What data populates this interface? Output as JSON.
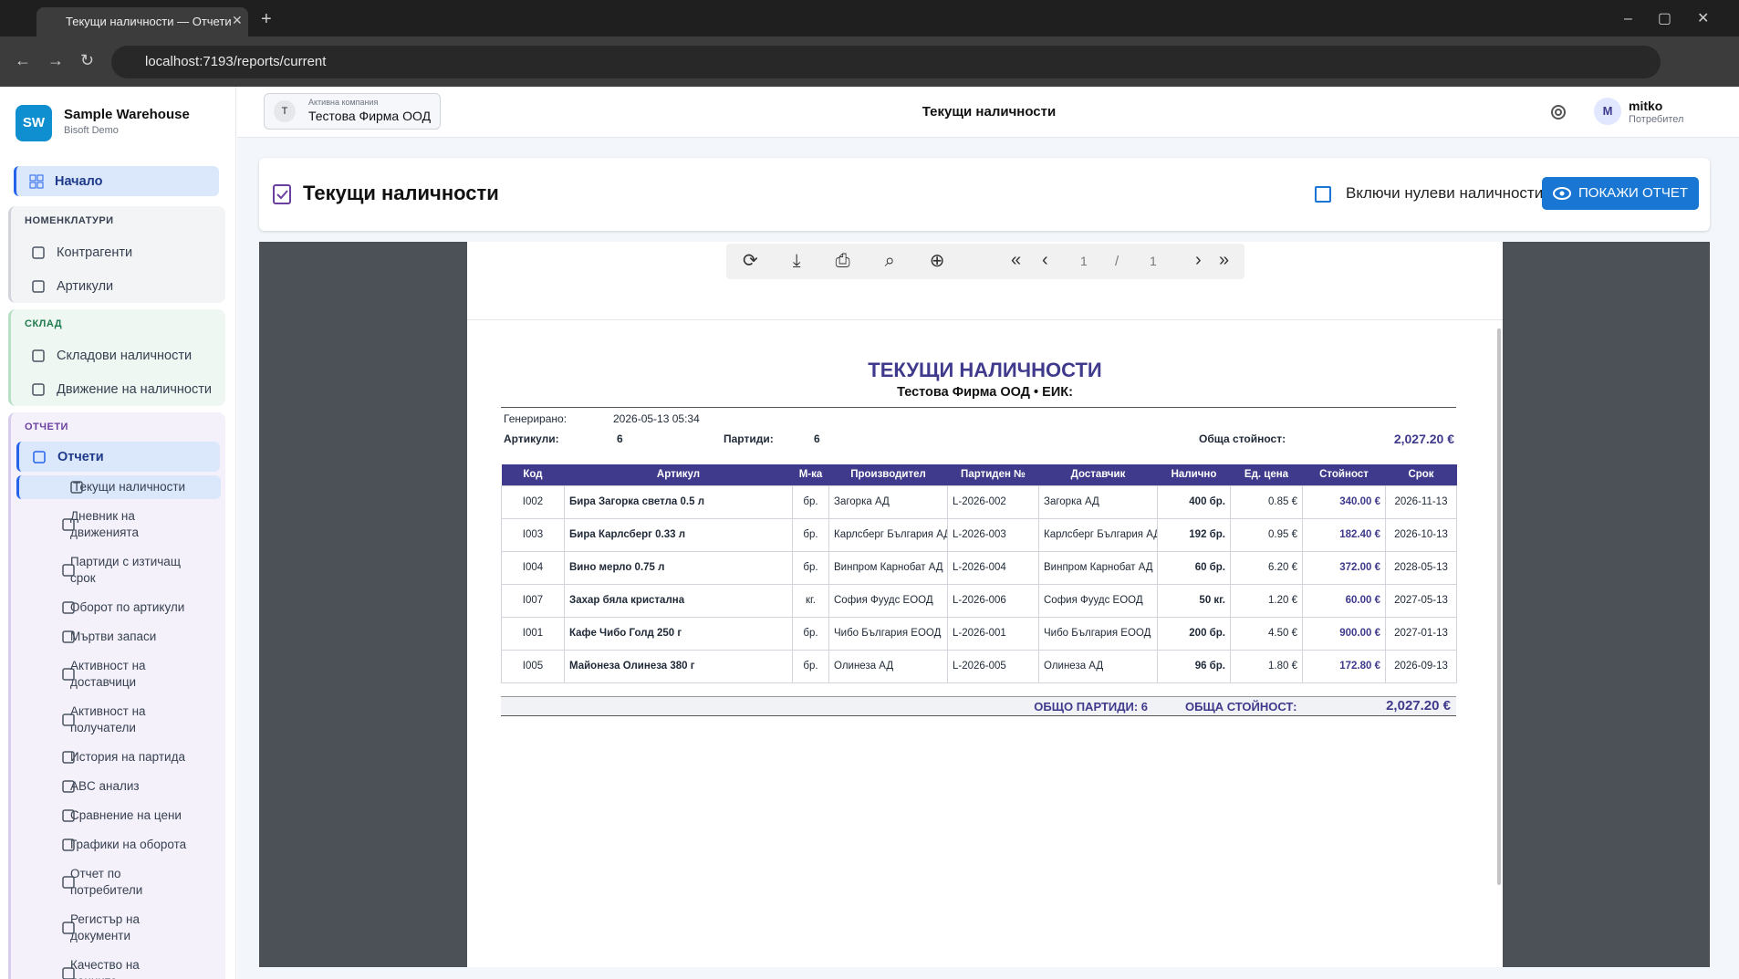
{
  "browser": {
    "tab_title": "Текущи наличности — Отчети",
    "url": "localhost:7193/reports/current"
  },
  "sidebar": {
    "logo": "SW",
    "brand": "Sample Warehouse",
    "brand_subtitle": "Bisoft Demo",
    "home": "Начало",
    "sections": [
      {
        "title": "НОМЕНКЛАТУРИ",
        "items": [
          "Контрагенти",
          "Артикули"
        ]
      },
      {
        "title": "СКЛАД",
        "items": [
          "Складови наличности",
          "Движение на наличности"
        ]
      }
    ],
    "reports": {
      "title": "ОТЧЕТИ",
      "group": "Отчети",
      "items": [
        "Текущи наличности",
        "Дневник на движенията",
        "Партиди с изтичащ срок",
        "Оборот по артикули",
        "Мъртви запаси",
        "Активност на доставчици",
        "Активност на получатели",
        "История на партида",
        "ABC анализ",
        "Сравнение на цени",
        "Графики на оборота",
        "Отчет по потребители",
        "Регистър на документи",
        "Качество на данните"
      ]
    }
  },
  "header": {
    "company_initial": "Т",
    "company_label": "Активна компания",
    "company_name": "Тестова Фирма ООД",
    "page_title": "Текущи наличности",
    "user_initial": "M",
    "user_name": "mitko",
    "user_role": "Потребител"
  },
  "report_card": {
    "title": "Текущи наличности",
    "checkbox_label": "Включи нулеви наличности",
    "button": "ПОКАЖИ ОТЧЕТ"
  },
  "viewer": {
    "page_current": "1",
    "page_separator": "/",
    "page_total": "1"
  },
  "report": {
    "title": "ТЕКУЩИ НАЛИЧНОСТИ",
    "subtitle": "Тестова Фирма ООД • ЕИК:",
    "generated_label": "Генерирано:",
    "generated_value": "2026-05-13 05:34",
    "articles_label": "Артикули:",
    "articles_value": "6",
    "batches_label": "Партиди:",
    "batches_value": "6",
    "total_label": "Обща стойност:",
    "total_value": "2,027.20 €",
    "table": {
      "columns": [
        "Код",
        "Артикул",
        "М-ка",
        "Производител",
        "Партиден №",
        "Доставчик",
        "Налично",
        "Ед. цена",
        "Стойност",
        "Срок"
      ],
      "rows": [
        [
          "I002",
          "Бира Загорка светла 0.5 л",
          "бр.",
          "Загорка АД",
          "L-2026-002",
          "Загорка АД",
          "400 бр.",
          "0.85 €",
          "340.00 €",
          "2026-11-13"
        ],
        [
          "I003",
          "Бира Карлсберг 0.33 л",
          "бр.",
          "Карлсберг България АД",
          "L-2026-003",
          "Карлсберг България АД",
          "192 бр.",
          "0.95 €",
          "182.40 €",
          "2026-10-13"
        ],
        [
          "I004",
          "Вино мерло 0.75 л",
          "бр.",
          "Винпром Карнобат АД",
          "L-2026-004",
          "Винпром Карнобат АД",
          "60 бр.",
          "6.20 €",
          "372.00 €",
          "2028-05-13"
        ],
        [
          "I007",
          "Захар бяла кристална",
          "кг.",
          "София Фуудс ЕООД",
          "L-2026-006",
          "София Фуудс ЕООД",
          "50 кг.",
          "1.20 €",
          "60.00 €",
          "2027-05-13"
        ],
        [
          "I001",
          "Кафе Чибо Голд 250 г",
          "бр.",
          "Чибо България ЕООД",
          "L-2026-001",
          "Чибо България ЕООД",
          "200 бр.",
          "4.50 €",
          "900.00 €",
          "2027-01-13"
        ],
        [
          "I005",
          "Майонеза Олинеза 380 г",
          "бр.",
          "Олинеза АД",
          "L-2026-005",
          "Олинеза АД",
          "96 бр.",
          "1.80 €",
          "172.80 €",
          "2026-09-13"
        ]
      ]
    },
    "footer": {
      "batches": "ОБЩО ПАРТИДИ: 6",
      "total_label": "ОБЩА СТОЙНОСТ:",
      "total_value": "2,027.20 €"
    }
  }
}
